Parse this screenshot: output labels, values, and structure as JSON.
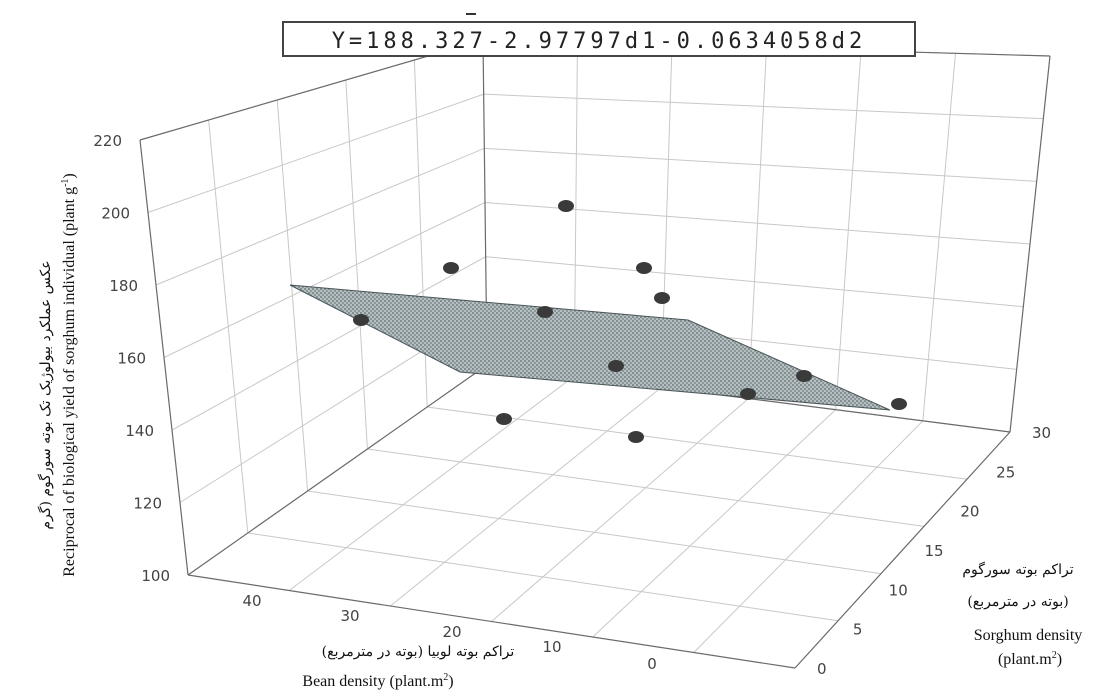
{
  "chart_data": {
    "type": "scatter",
    "equation": "Y=188.327-2.97797d1-0.0634058d2",
    "z_label_fa": "عکس عملکرد بیولوژیک تک بوته سورگوم (گرم",
    "z_label_en": "Reciprocal of biological yield of sorghum individual (plant g",
    "x_label_fa": "تراکم بوته لوبیا (بوته در مترمربع)",
    "x_label_en": "Bean density (plant.m",
    "y_label_fa": "تراکم بوته سورگوم",
    "y_label_fa2": "(بوته در مترمربع)",
    "y_label_en": "Sorghum density",
    "y_label_en2": "(plant.m",
    "z_ticks": [
      "100",
      "120",
      "140",
      "160",
      "180",
      "200",
      "220"
    ],
    "x_ticks": [
      "40",
      "30",
      "20",
      "10",
      "0"
    ],
    "y_ticks": [
      "0",
      "5",
      "10",
      "15",
      "20",
      "25",
      "30"
    ],
    "zlim": [
      100,
      220
    ],
    "xlim": [
      0,
      40
    ],
    "ylim": [
      0,
      30
    ],
    "grid": true,
    "colors": {
      "frame": "#6a6a6a",
      "grid": "#c8c8c8",
      "plane": "#9aa7aa",
      "points": "#3a3a3a"
    }
  }
}
